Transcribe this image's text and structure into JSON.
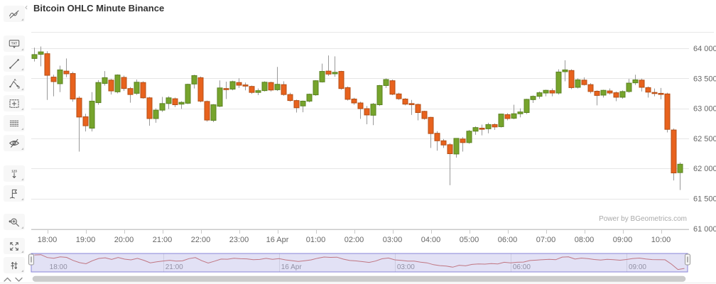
{
  "title": "Bitcoin OHLC Minute Binance",
  "watermark": "Power by BGeometrics.com",
  "toolbar": {
    "collapse_label": "‹",
    "items": [
      {
        "name": "trend-line-tool",
        "icon": "trend-line-icon"
      },
      {
        "name": "text-annotation-tool",
        "icon": "text-annotation-icon",
        "label": "TXT"
      },
      {
        "name": "segment-tool",
        "icon": "segment-icon"
      },
      {
        "name": "angle-measure-tool",
        "icon": "angle-icon",
        "label_a": "A",
        "label_b": "B"
      },
      {
        "name": "crosshair-select-tool",
        "icon": "crosshair-box-icon"
      },
      {
        "name": "parallel-lines-tool",
        "icon": "parallel-lines-icon"
      },
      {
        "name": "hide-annotations-tool",
        "icon": "eye-slash-icon"
      },
      {
        "name": "counter-tool",
        "icon": "counter-icon",
        "label": "123"
      },
      {
        "name": "flag-tool",
        "icon": "flag-icon"
      },
      {
        "name": "zoom-range-tool",
        "icon": "zoom-range-icon"
      },
      {
        "name": "fullscreen-tool",
        "icon": "expand-icon"
      },
      {
        "name": "compare-arrows-tool",
        "icon": "compare-arrows-icon"
      }
    ]
  },
  "chart_data": {
    "type": "candlestick",
    "title": "Bitcoin OHLC Minute Binance",
    "interval": "10 minutes",
    "y_axis": {
      "ticks": [
        {
          "label": "64 000",
          "value": 64000
        },
        {
          "label": "63 500",
          "value": 63500
        },
        {
          "label": "63 000",
          "value": 63000
        },
        {
          "label": "62 500",
          "value": 62500
        },
        {
          "label": "62 000",
          "value": 62000
        },
        {
          "label": "61 500",
          "value": 61500
        },
        {
          "label": "61 000",
          "value": 61000
        }
      ],
      "range": [
        61000,
        64260
      ]
    },
    "x_axis": {
      "ticks": [
        {
          "label": "18:00",
          "index": 2
        },
        {
          "label": "19:00",
          "index": 8
        },
        {
          "label": "20:00",
          "index": 14
        },
        {
          "label": "21:00",
          "index": 20
        },
        {
          "label": "22:00",
          "index": 26
        },
        {
          "label": "23:00",
          "index": 32
        },
        {
          "label": "16 Apr",
          "index": 38
        },
        {
          "label": "01:00",
          "index": 44
        },
        {
          "label": "02:00",
          "index": 50
        },
        {
          "label": "03:00",
          "index": 56
        },
        {
          "label": "04:00",
          "index": 62
        },
        {
          "label": "05:00",
          "index": 68
        },
        {
          "label": "06:00",
          "index": 74
        },
        {
          "label": "07:00",
          "index": 80
        },
        {
          "label": "08:00",
          "index": 86
        },
        {
          "label": "09:00",
          "index": 92
        },
        {
          "label": "10:00",
          "index": 98
        }
      ]
    },
    "navigator": {
      "ticks": [
        {
          "label": "18:00",
          "index": 2
        },
        {
          "label": "21:00",
          "index": 20
        },
        {
          "label": "16 Apr",
          "index": 38
        },
        {
          "label": "03:00",
          "index": 56
        },
        {
          "label": "06:00",
          "index": 74
        },
        {
          "label": "09:00",
          "index": 92
        }
      ]
    },
    "colors": {
      "up": "#76a42c",
      "up_border": "#5a8220",
      "down": "#e8621d",
      "down_border": "#b34e15",
      "wick": "#999999",
      "grid": "#e6e6e6",
      "axis_line": "#c9c9c9",
      "axis_label": "#666666",
      "nav_line": "#d4766c",
      "nav_mask": "rgba(125,120,210,0.22)",
      "nav_mask_border": "#8884d8",
      "nav_label": "#999999",
      "scrollbar": "#cccccc"
    },
    "columns": [
      "time",
      "open",
      "high",
      "low",
      "close"
    ],
    "candles": [
      [
        "17:40",
        63830,
        64010,
        63780,
        63895
      ],
      [
        "17:50",
        63900,
        64030,
        63700,
        63940
      ],
      [
        "18:00",
        63910,
        63950,
        63140,
        63550
      ],
      [
        "18:10",
        63520,
        63560,
        63200,
        63445
      ],
      [
        "18:20",
        63410,
        63710,
        63270,
        63640
      ],
      [
        "18:30",
        63620,
        63830,
        63520,
        63575
      ],
      [
        "18:40",
        63580,
        63610,
        63110,
        63155
      ],
      [
        "18:50",
        63170,
        63200,
        62280,
        62855
      ],
      [
        "19:00",
        62860,
        62910,
        62615,
        62710
      ],
      [
        "19:10",
        62670,
        63270,
        62615,
        63120
      ],
      [
        "19:20",
        63095,
        63470,
        63060,
        63430
      ],
      [
        "19:30",
        63415,
        63620,
        63380,
        63510
      ],
      [
        "19:40",
        63470,
        63490,
        63230,
        63290
      ],
      [
        "19:50",
        63275,
        63565,
        63250,
        63555
      ],
      [
        "20:00",
        63515,
        63545,
        63290,
        63330
      ],
      [
        "20:10",
        63330,
        63355,
        63095,
        63230
      ],
      [
        "20:20",
        63250,
        63480,
        63225,
        63435
      ],
      [
        "20:30",
        63430,
        63450,
        63160,
        63175
      ],
      [
        "20:40",
        63175,
        63190,
        62710,
        62830
      ],
      [
        "20:50",
        62830,
        63000,
        62760,
        62970
      ],
      [
        "21:00",
        62970,
        63190,
        62940,
        63080
      ],
      [
        "21:10",
        63080,
        63200,
        62990,
        63175
      ],
      [
        "21:20",
        63160,
        63180,
        63020,
        63060
      ],
      [
        "21:30",
        63070,
        63120,
        62990,
        63100
      ],
      [
        "21:40",
        63085,
        63410,
        63070,
        63400
      ],
      [
        "21:50",
        63405,
        63560,
        63330,
        63545
      ],
      [
        "22:00",
        63510,
        63530,
        63100,
        63120
      ],
      [
        "22:10",
        63115,
        63130,
        62780,
        62805
      ],
      [
        "22:20",
        62800,
        63070,
        62770,
        63060
      ],
      [
        "22:30",
        63035,
        63465,
        63020,
        63340
      ],
      [
        "22:40",
        63330,
        63445,
        63155,
        63320
      ],
      [
        "22:50",
        63320,
        63460,
        63300,
        63445
      ],
      [
        "23:00",
        63430,
        63500,
        63340,
        63385
      ],
      [
        "23:10",
        63390,
        63430,
        63300,
        63370
      ],
      [
        "23:20",
        63365,
        63380,
        63240,
        63265
      ],
      [
        "23:30",
        63265,
        63330,
        63220,
        63295
      ],
      [
        "23:40",
        63295,
        63450,
        63280,
        63435
      ],
      [
        "23:50",
        63430,
        63445,
        63280,
        63305
      ],
      [
        "00:00",
        63310,
        63690,
        63290,
        63400
      ],
      [
        "00:10",
        63395,
        63450,
        63210,
        63230
      ],
      [
        "00:20",
        63230,
        63260,
        63110,
        63130
      ],
      [
        "00:30",
        63130,
        63145,
        62930,
        63010
      ],
      [
        "00:40",
        63040,
        63130,
        62935,
        63120
      ],
      [
        "00:50",
        63120,
        63245,
        63100,
        63235
      ],
      [
        "01:00",
        63225,
        63470,
        63210,
        63460
      ],
      [
        "01:10",
        63440,
        63745,
        63430,
        63615
      ],
      [
        "01:20",
        63620,
        63880,
        63540,
        63570
      ],
      [
        "01:30",
        63575,
        63865,
        63525,
        63600
      ],
      [
        "01:40",
        63615,
        63625,
        63310,
        63330
      ],
      [
        "01:50",
        63345,
        63365,
        63130,
        63150
      ],
      [
        "02:00",
        63155,
        63175,
        63060,
        63090
      ],
      [
        "02:10",
        63090,
        63110,
        62825,
        62995
      ],
      [
        "02:20",
        62995,
        63040,
        62735,
        62890
      ],
      [
        "02:30",
        62885,
        63090,
        62720,
        63070
      ],
      [
        "02:40",
        63060,
        63390,
        63040,
        63380
      ],
      [
        "02:50",
        63380,
        63500,
        63340,
        63480
      ],
      [
        "03:00",
        63460,
        63480,
        63220,
        63235
      ],
      [
        "03:10",
        63240,
        63260,
        63140,
        63160
      ],
      [
        "03:20",
        63155,
        63170,
        63050,
        63070
      ],
      [
        "03:30",
        63080,
        63140,
        62890,
        63075
      ],
      [
        "03:40",
        63065,
        63080,
        62800,
        62930
      ],
      [
        "03:50",
        62950,
        62960,
        62810,
        62830
      ],
      [
        "04:00",
        62850,
        62860,
        62340,
        62580
      ],
      [
        "04:10",
        62585,
        62620,
        62295,
        62460
      ],
      [
        "04:20",
        62460,
        62490,
        62340,
        62390
      ],
      [
        "04:30",
        62395,
        62420,
        61720,
        62245
      ],
      [
        "04:40",
        62240,
        62505,
        62180,
        62500
      ],
      [
        "04:50",
        62490,
        62520,
        62280,
        62430
      ],
      [
        "05:00",
        62430,
        62640,
        62410,
        62620
      ],
      [
        "05:10",
        62620,
        62700,
        62560,
        62680
      ],
      [
        "05:20",
        62670,
        62730,
        62550,
        62660
      ],
      [
        "05:30",
        62660,
        62760,
        62585,
        62730
      ],
      [
        "05:40",
        62730,
        62750,
        62640,
        62690
      ],
      [
        "05:50",
        62695,
        62910,
        62680,
        62905
      ],
      [
        "06:00",
        62895,
        62920,
        62800,
        62830
      ],
      [
        "06:10",
        62835,
        63060,
        62820,
        62910
      ],
      [
        "06:20",
        62910,
        63000,
        62850,
        62940
      ],
      [
        "06:30",
        62930,
        63160,
        62905,
        63150
      ],
      [
        "06:40",
        63145,
        63215,
        63090,
        63200
      ],
      [
        "06:50",
        63200,
        63280,
        63160,
        63260
      ],
      [
        "07:00",
        63255,
        63310,
        63200,
        63300
      ],
      [
        "07:10",
        63295,
        63330,
        63200,
        63255
      ],
      [
        "07:20",
        63255,
        63650,
        63230,
        63605
      ],
      [
        "07:30",
        63610,
        63800,
        63450,
        63640
      ],
      [
        "07:40",
        63630,
        63650,
        63320,
        63345
      ],
      [
        "07:50",
        63350,
        63500,
        63330,
        63475
      ],
      [
        "08:00",
        63470,
        63515,
        63380,
        63395
      ],
      [
        "08:10",
        63395,
        63420,
        63250,
        63280
      ],
      [
        "08:20",
        63285,
        63300,
        63050,
        63215
      ],
      [
        "08:30",
        63220,
        63310,
        63180,
        63300
      ],
      [
        "08:40",
        63290,
        63330,
        63230,
        63255
      ],
      [
        "08:50",
        63260,
        63280,
        63120,
        63185
      ],
      [
        "09:00",
        63185,
        63300,
        63160,
        63280
      ],
      [
        "09:10",
        63280,
        63490,
        63260,
        63420
      ],
      [
        "09:20",
        63425,
        63560,
        63390,
        63475
      ],
      [
        "09:30",
        63470,
        63495,
        63280,
        63350
      ],
      [
        "09:40",
        63345,
        63365,
        63180,
        63270
      ],
      [
        "09:50",
        63265,
        63330,
        63200,
        63250
      ],
      [
        "10:00",
        63250,
        63340,
        63150,
        63240
      ],
      [
        "10:10",
        63240,
        63260,
        62600,
        62650
      ],
      [
        "10:20",
        62640,
        62665,
        61800,
        61925
      ],
      [
        "10:30",
        61930,
        62100,
        61640,
        62070
      ]
    ]
  }
}
